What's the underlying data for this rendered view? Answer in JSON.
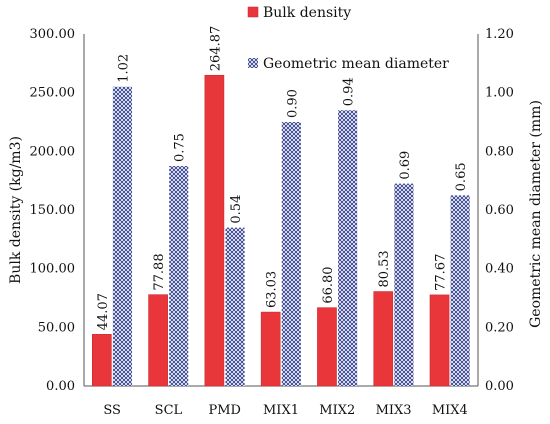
{
  "chart_data": {
    "type": "bar",
    "categories": [
      "SS",
      "SCL",
      "PMD",
      "MIX1",
      "MIX2",
      "MIX3",
      "MIX4"
    ],
    "series": [
      {
        "name": "Bulk density",
        "axis": "left",
        "color": "#e8363a",
        "values": [
          44.07,
          77.88,
          264.87,
          63.03,
          66.8,
          80.53,
          77.67
        ],
        "labels": [
          "44.07",
          "77.88",
          "264.87",
          "63.03",
          "66.80",
          "80.53",
          "77.67"
        ]
      },
      {
        "name": "Geometric mean diameter",
        "axis": "right",
        "color": "#2b3a8c",
        "pattern": "crosshatch",
        "values": [
          1.02,
          0.75,
          0.54,
          0.9,
          0.94,
          0.69,
          0.65
        ],
        "labels": [
          "1.02",
          "0.75",
          "0.54",
          "0.90",
          "0.94",
          "0.69",
          "0.65"
        ]
      }
    ],
    "ylabel_left": "Bulk density (kg/m3)",
    "ylabel_right": "Geometric mean diameter (mm)",
    "ylim_left": [
      0,
      300
    ],
    "ylim_right": [
      0,
      1.2
    ],
    "yticks_left": [
      "0.00",
      "50.00",
      "100.00",
      "150.00",
      "200.00",
      "250.00",
      "300.00"
    ],
    "yticks_right": [
      "0.00",
      "0.20",
      "0.40",
      "0.60",
      "0.80",
      "1.00",
      "1.20"
    ],
    "grid": false,
    "legend_position": "top-right"
  }
}
